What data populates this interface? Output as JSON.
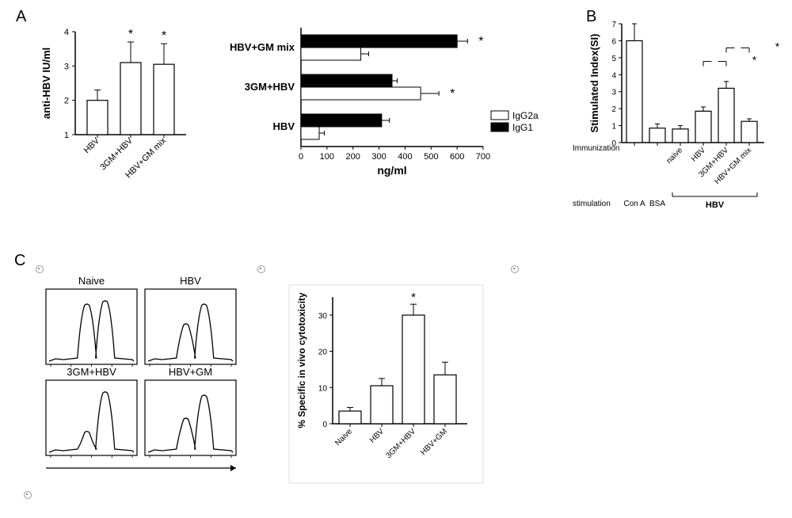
{
  "panelLabels": {
    "A": "A",
    "B": "B",
    "C": "C"
  },
  "panelA_left": {
    "type": "bar",
    "ylabel": "anti-HBV IU/ml",
    "yticks": [
      1,
      2,
      3,
      4
    ],
    "ylim": [
      1,
      4
    ],
    "bar_color": "#ffffff",
    "bar_border": "#000000",
    "categories": [
      "HBV",
      "3GM+HBV",
      "HBV+GM mix"
    ],
    "values": [
      2.0,
      3.1,
      3.05
    ],
    "errors": [
      0.3,
      0.6,
      0.6
    ],
    "sig_marks": [
      "",
      "*",
      "*"
    ],
    "title_fontsize": 13,
    "label_fontsize": 12,
    "tick_fontsize": 11
  },
  "panelA_right": {
    "type": "horizontal_grouped_bar",
    "xlabel": "ng/ml",
    "xticks": [
      0,
      100,
      200,
      300,
      400,
      500,
      600,
      700
    ],
    "xlim": [
      0,
      700
    ],
    "groups": [
      "HBV",
      "3GM+HBV",
      "HBV+GM mix"
    ],
    "series": [
      {
        "name": "IgG1",
        "color": "#000000",
        "values": [
          310,
          350,
          600
        ],
        "errors": [
          30,
          20,
          40
        ],
        "sig": [
          "",
          "",
          "*"
        ]
      },
      {
        "name": "IgG2a",
        "color": "#ffffff",
        "values": [
          70,
          460,
          230
        ],
        "errors": [
          20,
          70,
          30
        ],
        "sig": [
          "",
          "*",
          ""
        ]
      }
    ],
    "label_fontsize": 14,
    "tick_fontsize": 11,
    "legend_fontsize": 12
  },
  "panelB": {
    "type": "bar",
    "ylabel": "Stimulated Index(SI)",
    "yticks": [
      0,
      1,
      2,
      3,
      4,
      5,
      6,
      7
    ],
    "ylim": [
      0,
      7
    ],
    "bar_color": "#ffffff",
    "bar_border": "#000000",
    "categories": [
      "naive",
      "HBV",
      "3GM+HBV",
      "HBV+GM mix"
    ],
    "values": [
      6.0,
      0.85,
      0.8,
      1.85,
      3.2,
      1.25
    ],
    "errors": [
      1.0,
      0.25,
      0.2,
      0.25,
      0.4,
      0.15
    ],
    "row1_label": "Immunization",
    "row2_label": "stimulation",
    "row2_items": [
      "Con A",
      "BSA",
      "HBV"
    ],
    "sig_pairs": [
      {
        "from": 3,
        "to": 4,
        "y": 4.5,
        "mark": "*"
      },
      {
        "from": 4,
        "to": 5,
        "y": 5.3,
        "mark": "*"
      }
    ],
    "label_fontsize": 13,
    "tick_fontsize": 10
  },
  "panelC_hist": {
    "type": "flow_histograms",
    "panels": [
      {
        "label": "Naive",
        "peaks": [
          {
            "x": 0.45,
            "h": 0.85
          },
          {
            "x": 0.65,
            "h": 0.9
          }
        ]
      },
      {
        "label": "HBV",
        "peaks": [
          {
            "x": 0.45,
            "h": 0.55
          },
          {
            "x": 0.65,
            "h": 0.85
          }
        ]
      },
      {
        "label": "3GM+HBV",
        "peaks": [
          {
            "x": 0.45,
            "h": 0.3
          },
          {
            "x": 0.65,
            "h": 0.9
          }
        ]
      },
      {
        "label": "HBV+GM",
        "peaks": [
          {
            "x": 0.45,
            "h": 0.5
          },
          {
            "x": 0.65,
            "h": 0.85
          }
        ]
      }
    ],
    "line_color": "#000000",
    "label_fontsize": 13
  },
  "panelC_bar": {
    "type": "bar",
    "ylabel": "% Specific in vivo cytotoxicity",
    "yticks": [
      0,
      10,
      20,
      30
    ],
    "ylim": [
      0,
      35
    ],
    "bar_color": "#ffffff",
    "bar_border": "#000000",
    "categories": [
      "Naive",
      "HBV",
      "3GM+HBV",
      "HBV+GM"
    ],
    "values": [
      3.5,
      10.5,
      30,
      13.5
    ],
    "errors": [
      1.0,
      2.0,
      3.0,
      3.5
    ],
    "sig_marks": [
      "",
      "",
      "*",
      ""
    ],
    "label_fontsize": 12,
    "tick_fontsize": 10
  },
  "colors": {
    "axis": "#000000",
    "text": "#000000",
    "error_bar": "#000000"
  }
}
